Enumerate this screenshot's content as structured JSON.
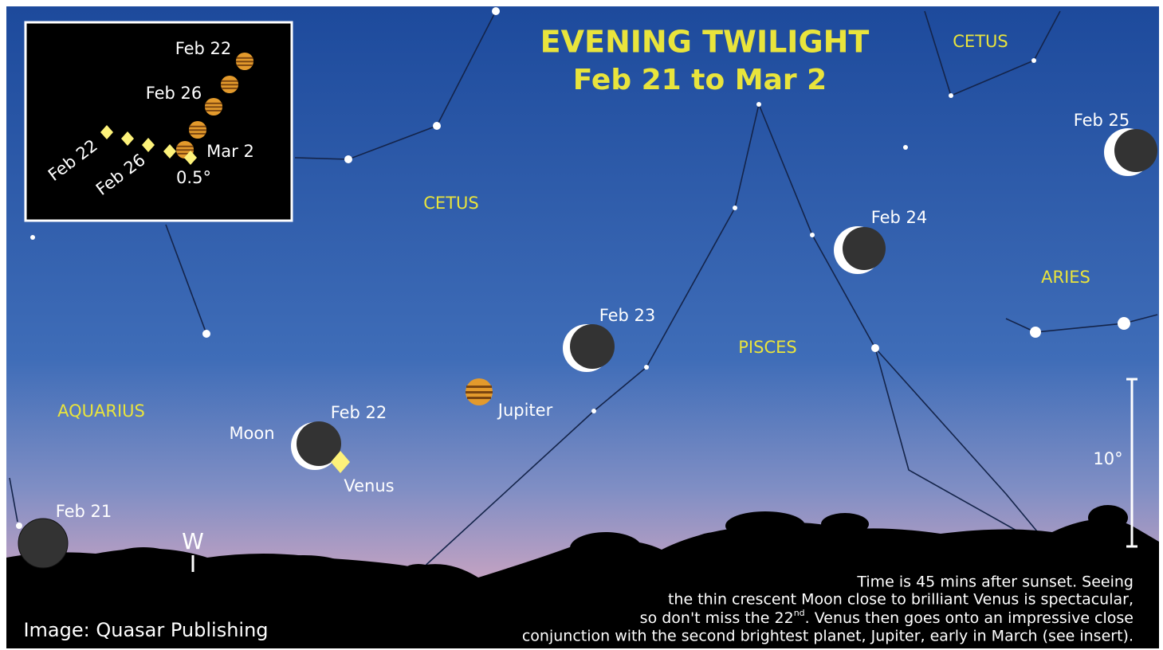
{
  "title": [
    "EVENING TWILIGHT",
    "Feb 21 to Mar 2"
  ],
  "constellations": [
    "CETUS",
    "CETUS",
    "ARIES",
    "PISCES",
    "AQUARIUS"
  ],
  "moon_dates": [
    "Feb 21",
    "Feb 22",
    "Feb 23",
    "Feb 24",
    "Feb 25"
  ],
  "objects": {
    "moon": "Moon",
    "venus": "Venus",
    "jupiter": "Jupiter"
  },
  "direction": "W",
  "scale": "10°",
  "inset": {
    "jupiter_dates": [
      "Feb 22",
      "Feb 26",
      "Mar 2"
    ],
    "venus_dates": [
      "Feb 22",
      "Feb 26"
    ],
    "scale": "0.5°"
  },
  "caption": [
    "Time is 45 mins after sunset. Seeing",
    "the thin crescent Moon close to brilliant Venus is spectacular,",
    [
      "so don't miss the 22",
      "nd",
      ". Venus then goes onto an impressive close"
    ],
    "conjunction with the second brightest planet, Jupiter, early in March (see insert)."
  ],
  "credit": "Image: Quasar Publishing"
}
